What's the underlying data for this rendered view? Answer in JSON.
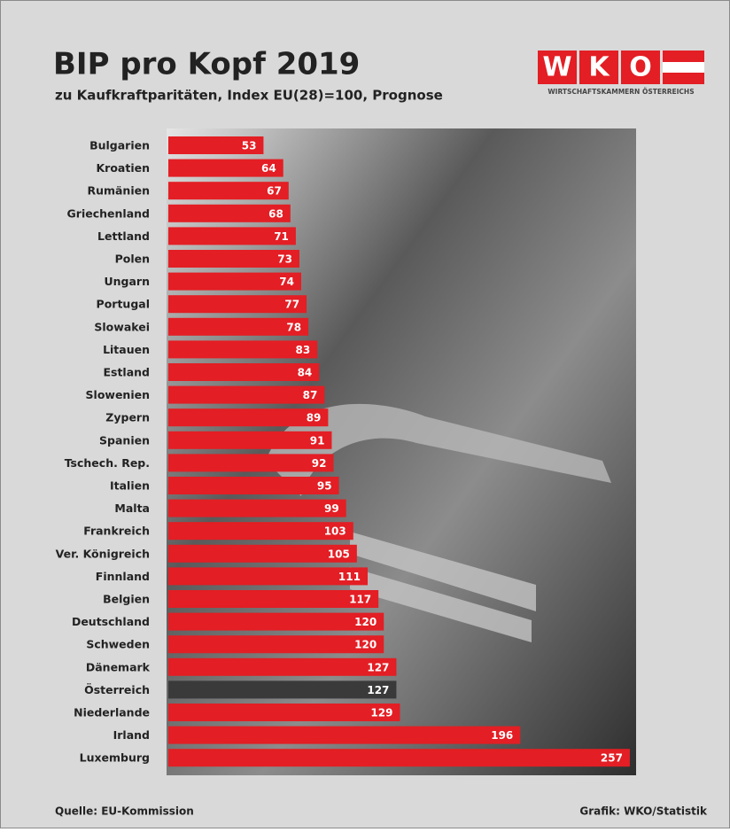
{
  "chart_data": {
    "type": "bar",
    "orientation": "horizontal",
    "title": "BIP pro Kopf 2019",
    "subtitle": "zu Kaufkraftparitäten, Index EU(28)=100, Prognose",
    "categories": [
      "Bulgarien",
      "Kroatien",
      "Rumänien",
      "Griechenland",
      "Lettland",
      "Polen",
      "Ungarn",
      "Portugal",
      "Slowakei",
      "Litauen",
      "Estland",
      "Slowenien",
      "Zypern",
      "Spanien",
      "Tschech. Rep.",
      "Italien",
      "Malta",
      "Frankreich",
      "Ver. Königreich",
      "Finnland",
      "Belgien",
      "Deutschland",
      "Schweden",
      "Dänemark",
      "Österreich",
      "Niederlande",
      "Irland",
      "Luxemburg"
    ],
    "values": [
      53,
      64,
      67,
      68,
      71,
      73,
      74,
      77,
      78,
      83,
      84,
      87,
      89,
      91,
      92,
      95,
      99,
      103,
      105,
      111,
      117,
      120,
      120,
      127,
      127,
      129,
      196,
      257
    ],
    "colors": [
      "#e31e24",
      "#e31e24",
      "#e31e24",
      "#e31e24",
      "#e31e24",
      "#e31e24",
      "#e31e24",
      "#e31e24",
      "#e31e24",
      "#e31e24",
      "#e31e24",
      "#e31e24",
      "#e31e24",
      "#e31e24",
      "#e31e24",
      "#e31e24",
      "#e31e24",
      "#e31e24",
      "#e31e24",
      "#e31e24",
      "#e31e24",
      "#e31e24",
      "#e31e24",
      "#e31e24",
      "#3a3a3a",
      "#e31e24",
      "#e31e24",
      "#e31e24"
    ],
    "source": "Quelle: EU-Kommission",
    "credit": "Grafik: WKO/Statistik"
  },
  "logo": {
    "letters": [
      "W",
      "K",
      "O"
    ],
    "text": "WIRTSCHAFTSKAMMERN ÖSTERREICHS"
  }
}
